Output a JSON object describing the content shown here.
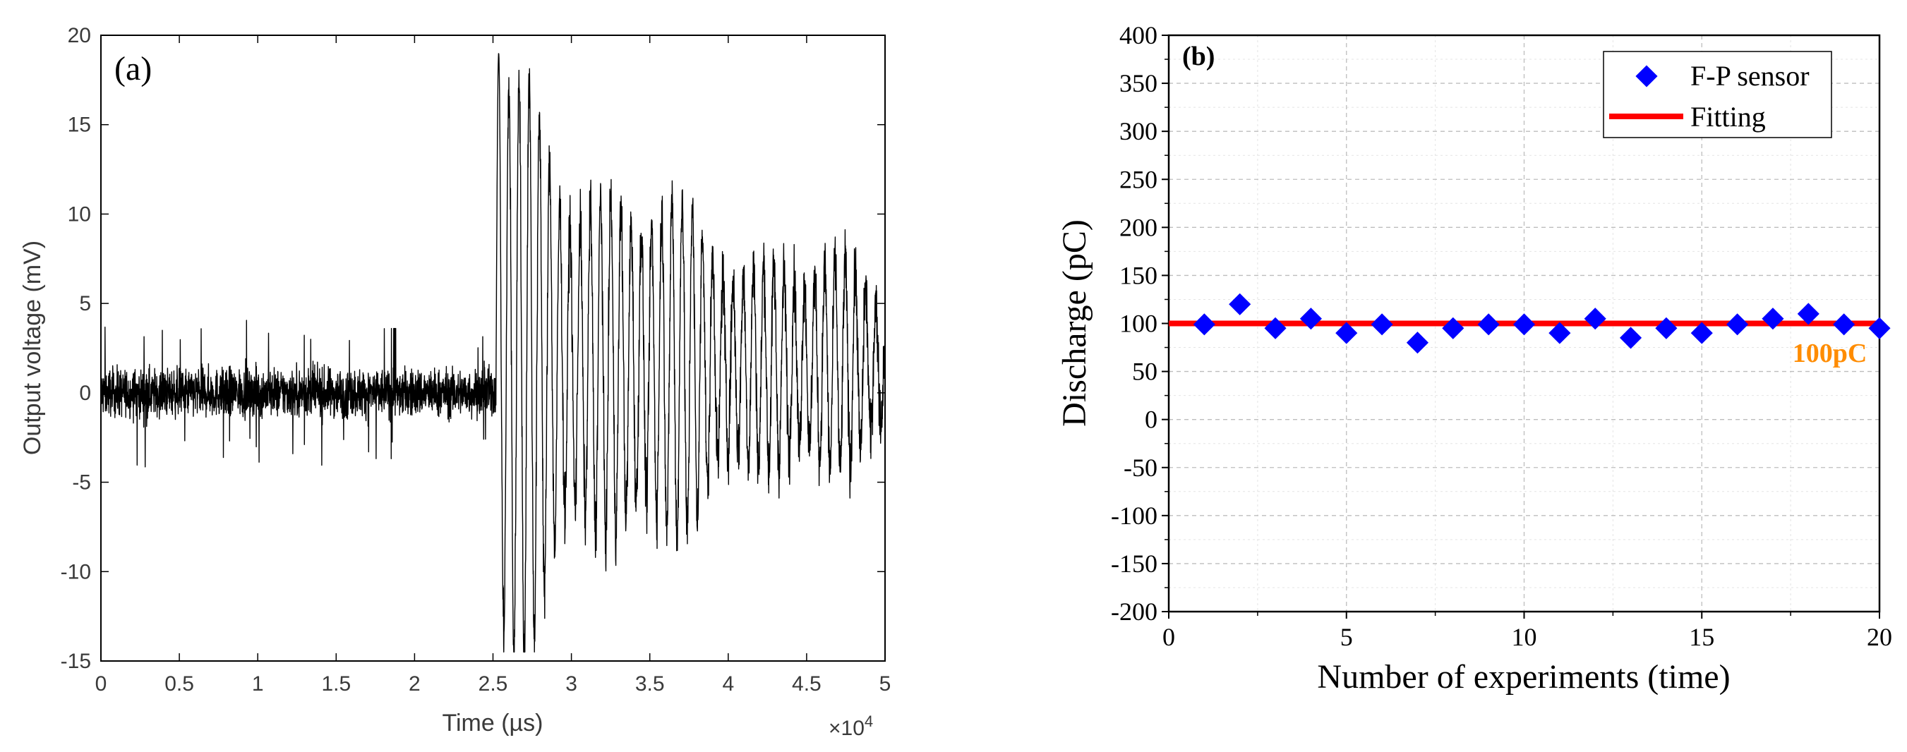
{
  "chart_data": [
    {
      "type": "line",
      "panel_label": "(a)",
      "title": "",
      "xlabel": "Time (µs)",
      "ylabel": "Output voltage (mV)",
      "x_multiplier": "×10",
      "x_multiplier_exp": "4",
      "xlim": [
        0,
        5
      ],
      "ylim": [
        -15,
        20
      ],
      "xticks": [
        0,
        0.5,
        1,
        1.5,
        2,
        2.5,
        3,
        3.5,
        4,
        4.5,
        5
      ],
      "xtick_labels": [
        "0",
        "0.5",
        "1",
        "1.5",
        "2",
        "2.5",
        "3",
        "3.5",
        "4",
        "4.5",
        "5"
      ],
      "yticks": [
        -15,
        -10,
        -5,
        0,
        5,
        10,
        15,
        20
      ],
      "ytick_labels": [
        "-15",
        "-10",
        "-5",
        "0",
        "5",
        "10",
        "15",
        "20"
      ],
      "grid": false,
      "line_color": "#000000",
      "signal": {
        "noise_region_x": [
          0,
          2.52
        ],
        "noise_amplitude_mV": 1.2,
        "noise_peak_mV": [
          4.0,
          -4.8
        ],
        "burst_onset_x": 2.52,
        "burst_peak_mV": [
          19.2,
          -13.2
        ],
        "burst_end_amplitude_mV": [
          6,
          -5.5
        ],
        "oscillation_period_x": 0.065
      }
    },
    {
      "type": "scatter",
      "panel_label": "(b)",
      "title": "",
      "xlabel": "Number of experiments (time)",
      "ylabel": "Discharge (pC)",
      "xlim": [
        0,
        20
      ],
      "ylim": [
        -200,
        400
      ],
      "xticks": [
        0,
        5,
        10,
        15,
        20
      ],
      "xtick_labels": [
        "0",
        "5",
        "10",
        "15",
        "20"
      ],
      "yticks": [
        -200,
        -150,
        -100,
        -50,
        0,
        50,
        100,
        150,
        200,
        250,
        300,
        350,
        400
      ],
      "ytick_labels": [
        "-200",
        "-150",
        "-100",
        "-50",
        "0",
        "50",
        "100",
        "150",
        "200",
        "250",
        "300",
        "350",
        "400"
      ],
      "grid": true,
      "series": [
        {
          "name": "F-P sensor",
          "marker": "diamond",
          "color": "#0000ff",
          "x": [
            1,
            2,
            3,
            4,
            5,
            6,
            7,
            8,
            9,
            10,
            11,
            12,
            13,
            14,
            15,
            16,
            17,
            18,
            19,
            20
          ],
          "y": [
            99,
            120,
            95,
            105,
            90,
            99,
            80,
            95,
            99,
            99,
            90,
            105,
            85,
            95,
            90,
            99,
            105,
            110,
            99,
            95
          ]
        },
        {
          "name": "Fitting",
          "type": "line",
          "color": "#ff0000",
          "x": [
            0,
            20
          ],
          "y": [
            100,
            100
          ]
        }
      ],
      "annotation": {
        "text": "100pC",
        "color": "#ff8c00",
        "x": 18.6,
        "y": 60
      },
      "legend": "top-right"
    }
  ]
}
